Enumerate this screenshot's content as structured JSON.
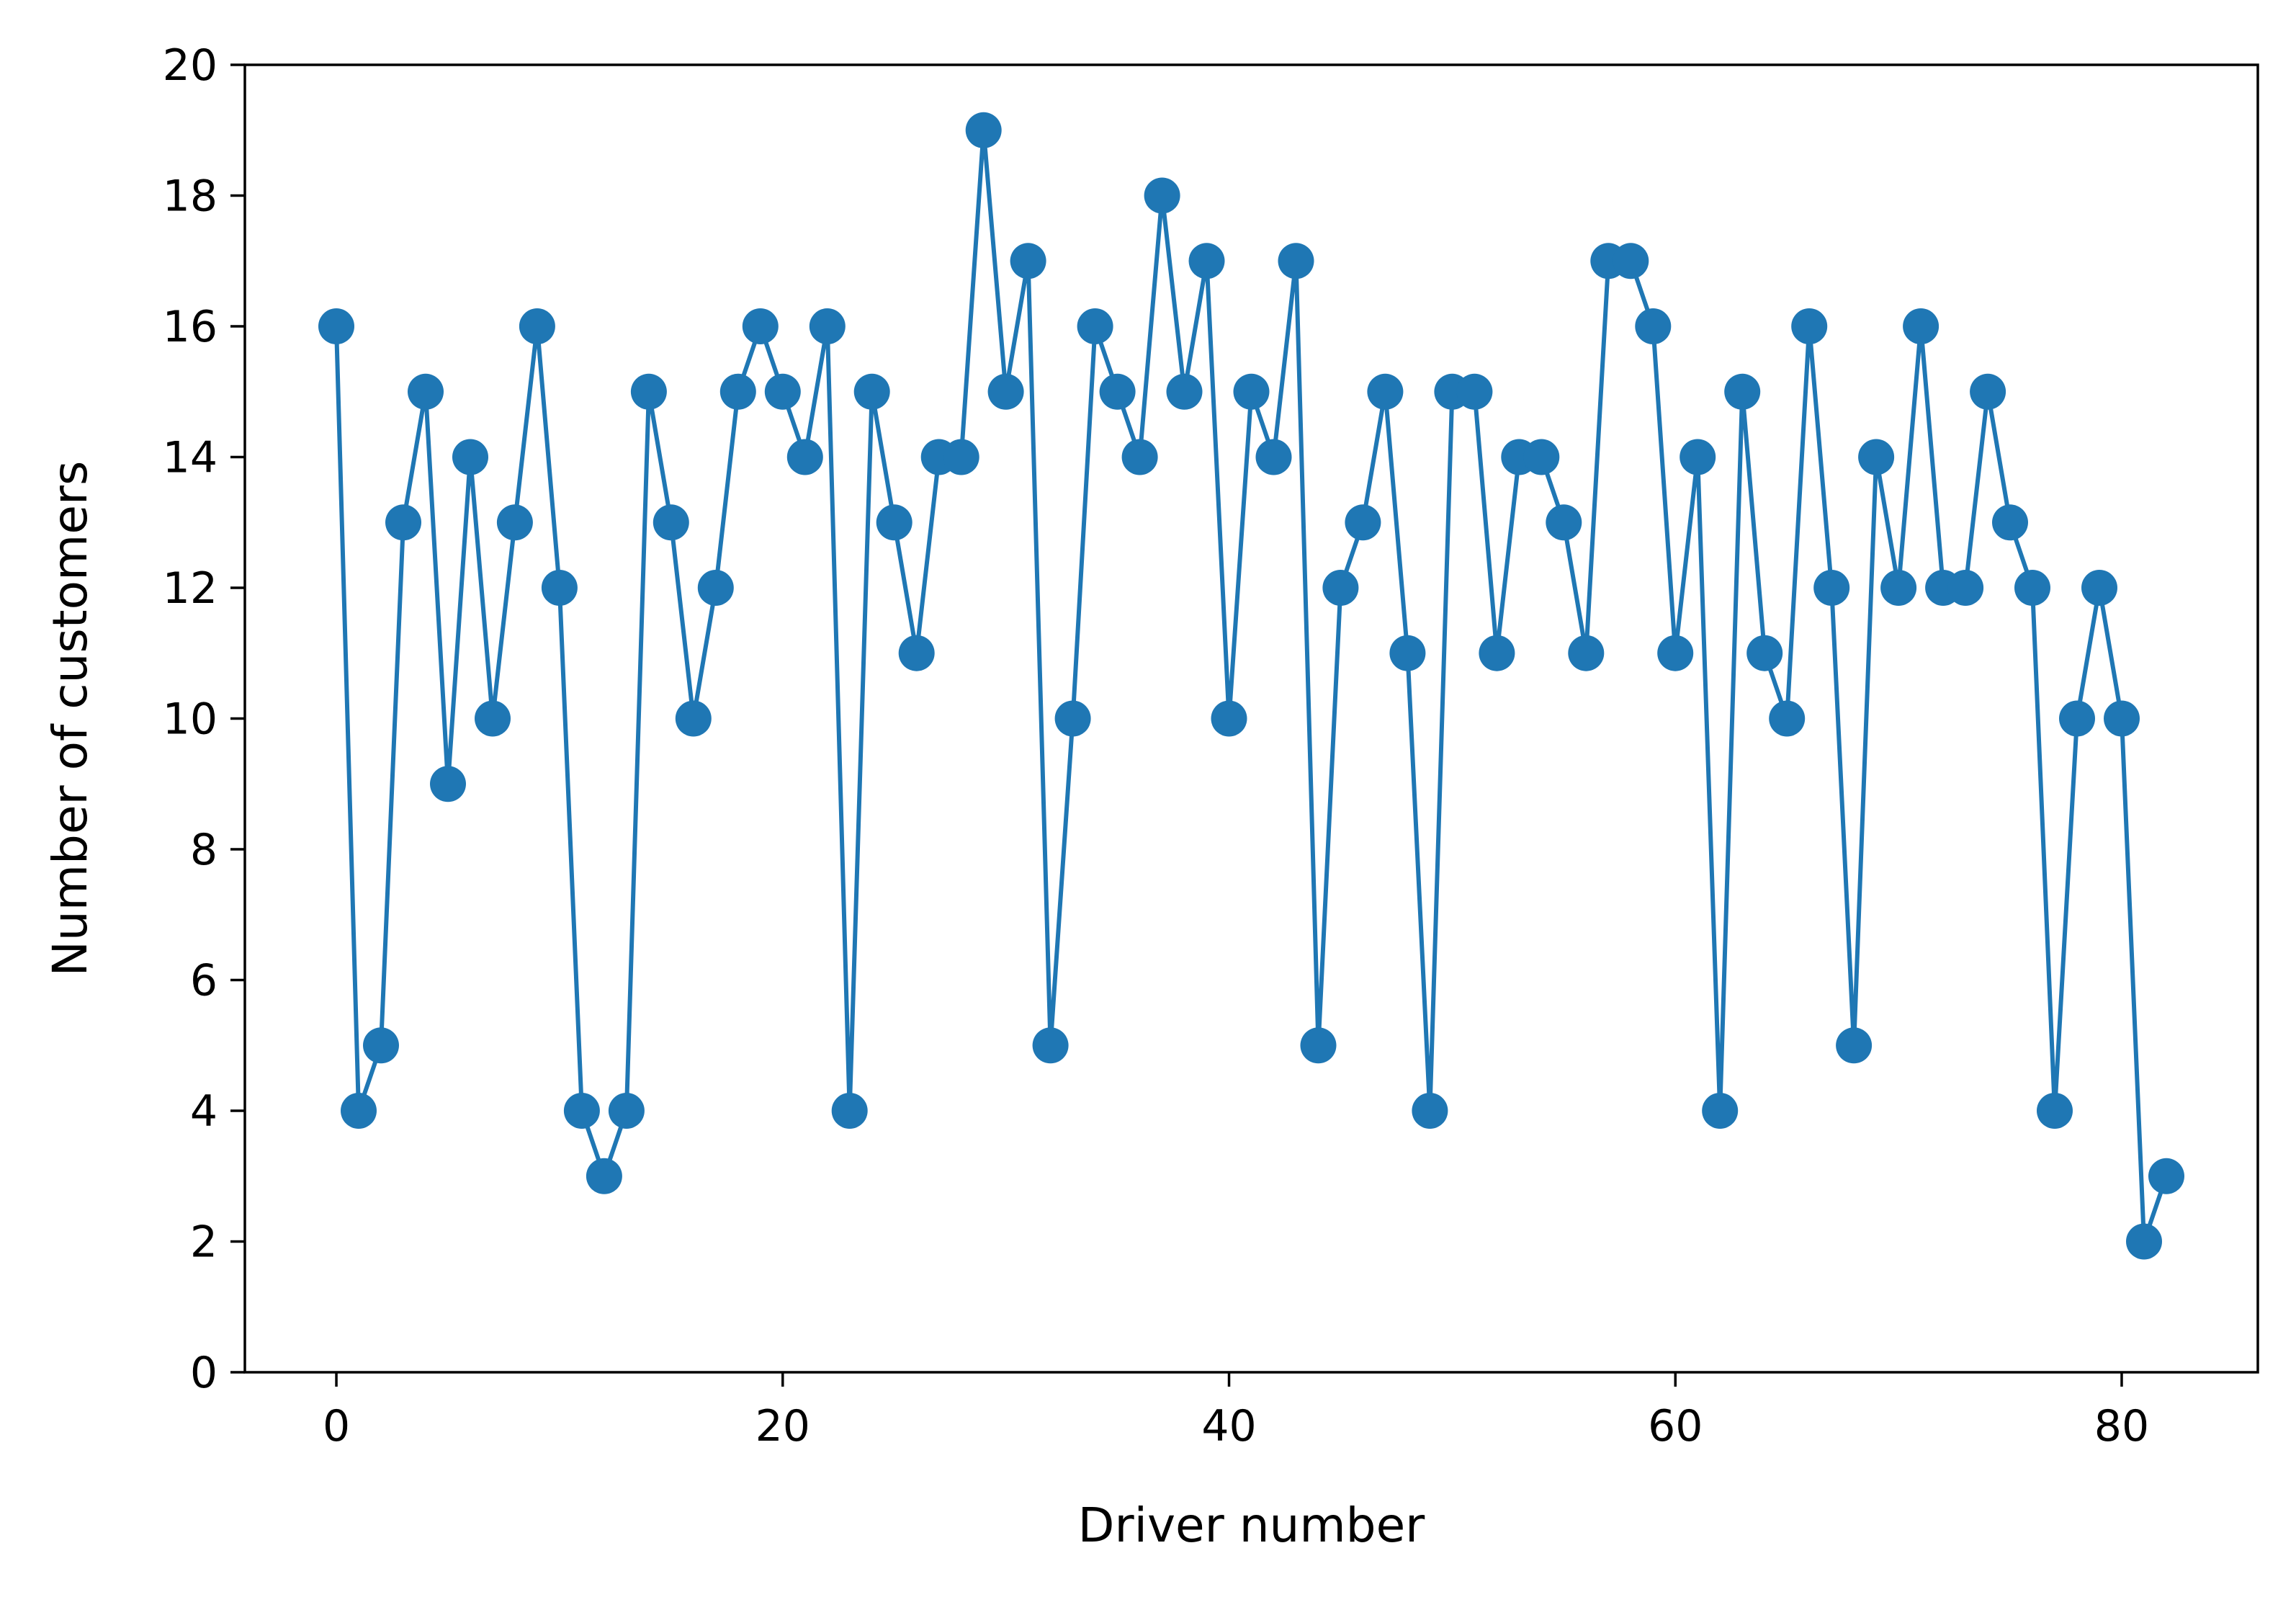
{
  "chart_data": {
    "type": "line",
    "title": "",
    "xlabel": "Driver number",
    "ylabel": "Number of customers",
    "xlim": [
      -4.1,
      86.1
    ],
    "ylim": [
      0,
      20
    ],
    "xticks": [
      0,
      20,
      40,
      60,
      80
    ],
    "xtick_labels": [
      "0",
      "20",
      "40",
      "60",
      "80"
    ],
    "yticks": [
      0,
      2,
      4,
      6,
      8,
      10,
      12,
      14,
      16,
      18,
      20
    ],
    "ytick_labels": [
      "0",
      "2",
      "4",
      "6",
      "8",
      "10",
      "12",
      "14",
      "16",
      "18",
      "20"
    ],
    "grid": false,
    "legend": false,
    "series": [
      {
        "color": "#1f77b4",
        "marker": "circle",
        "x": [
          0,
          1,
          2,
          3,
          4,
          5,
          6,
          7,
          8,
          9,
          10,
          11,
          12,
          13,
          14,
          15,
          16,
          17,
          18,
          19,
          20,
          21,
          22,
          23,
          24,
          25,
          26,
          27,
          28,
          29,
          30,
          31,
          32,
          33,
          34,
          35,
          36,
          37,
          38,
          39,
          40,
          41,
          42,
          43,
          44,
          45,
          46,
          47,
          48,
          49,
          50,
          51,
          52,
          53,
          54,
          55,
          56,
          57,
          58,
          59,
          60,
          61,
          62,
          63,
          64,
          65,
          66,
          67,
          68,
          69,
          70,
          71,
          72,
          73,
          74,
          75,
          76,
          77,
          78,
          79,
          80,
          81,
          82
        ],
        "values": [
          16,
          4,
          5,
          13,
          15,
          9,
          14,
          10,
          13,
          16,
          12,
          4,
          3,
          4,
          15,
          13,
          10,
          12,
          15,
          16,
          15,
          14,
          16,
          4,
          15,
          13,
          11,
          14,
          14,
          19,
          15,
          17,
          5,
          10,
          16,
          15,
          14,
          18,
          15,
          17,
          10,
          15,
          14,
          17,
          5,
          12,
          13,
          15,
          11,
          4,
          15,
          15,
          11,
          14,
          14,
          13,
          11,
          17,
          17,
          16,
          11,
          14,
          4,
          15,
          11,
          10,
          16,
          12,
          5,
          14,
          12,
          16,
          12,
          12,
          15,
          13,
          12,
          4,
          10,
          12,
          10,
          2,
          3
        ]
      }
    ]
  }
}
